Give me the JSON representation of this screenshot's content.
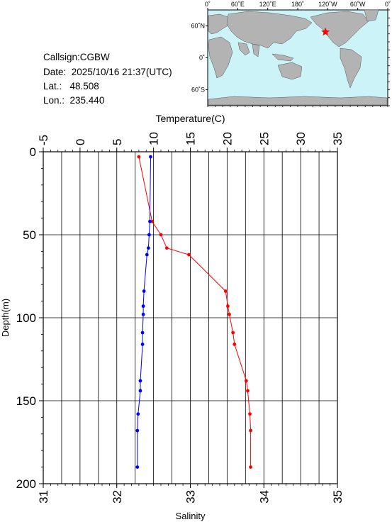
{
  "station": {
    "callsign": "Callsign:CGBW",
    "date": "Date:  2025/10/16 21:37(UTC)",
    "lat": "Lat.:   48.508",
    "lon": "Lon.:  235.440"
  },
  "map": {
    "top_labels": [
      "0˚",
      "60˚E",
      "120˚E",
      "180˚",
      "120˚W",
      "60˚W",
      "0˚"
    ],
    "lat_labels": [
      "60˚N",
      "0˚",
      "60˚S"
    ],
    "land_color": "#b3b3b3",
    "ocean_color": "#ccf4f8",
    "marker_color": "#ff0000",
    "marker": {
      "lon": 235.44,
      "lat": 48.508
    }
  },
  "chart_data": {
    "type": "line",
    "title": "",
    "xlabel_top": "Temperature(C)",
    "xlabel_bottom": "Salinity",
    "ylabel": "Depth(m)",
    "temperature_range": [
      -5,
      35
    ],
    "temperature_ticks": [
      "-5",
      "0",
      "5",
      "10",
      "15",
      "20",
      "25",
      "30",
      "35"
    ],
    "salinity_range": [
      31,
      35
    ],
    "salinity_ticks": [
      "31",
      "32",
      "33",
      "34",
      "35"
    ],
    "depth_range": [
      0,
      200
    ],
    "depth_ticks": [
      "0",
      "50",
      "100",
      "150",
      "200"
    ],
    "grid": true,
    "series": [
      {
        "color": "#ff0000",
        "axis": "temperature",
        "points": [
          {
            "depth": 3,
            "value": 8.0
          },
          {
            "depth": 42,
            "value": 9.8
          },
          {
            "depth": 50,
            "value": 11.0
          },
          {
            "depth": 58,
            "value": 11.8
          },
          {
            "depth": 62,
            "value": 14.8
          },
          {
            "depth": 84,
            "value": 19.8
          },
          {
            "depth": 93,
            "value": 20.1
          },
          {
            "depth": 98,
            "value": 20.3
          },
          {
            "depth": 109,
            "value": 20.8
          },
          {
            "depth": 116,
            "value": 21.0
          },
          {
            "depth": 138,
            "value": 22.6
          },
          {
            "depth": 144,
            "value": 22.8
          },
          {
            "depth": 158,
            "value": 23.1
          },
          {
            "depth": 168,
            "value": 23.2
          },
          {
            "depth": 190,
            "value": 23.2
          }
        ]
      },
      {
        "color": "#0000ff",
        "axis": "salinity",
        "points": [
          {
            "depth": 3,
            "value": 32.46
          },
          {
            "depth": 42,
            "value": 32.45
          },
          {
            "depth": 50,
            "value": 32.44
          },
          {
            "depth": 58,
            "value": 32.43
          },
          {
            "depth": 62,
            "value": 32.41
          },
          {
            "depth": 84,
            "value": 32.37
          },
          {
            "depth": 93,
            "value": 32.36
          },
          {
            "depth": 98,
            "value": 32.36
          },
          {
            "depth": 109,
            "value": 32.35
          },
          {
            "depth": 116,
            "value": 32.35
          },
          {
            "depth": 138,
            "value": 32.32
          },
          {
            "depth": 144,
            "value": 32.32
          },
          {
            "depth": 158,
            "value": 32.29
          },
          {
            "depth": 168,
            "value": 32.28
          },
          {
            "depth": 190,
            "value": 32.28
          }
        ]
      }
    ]
  }
}
